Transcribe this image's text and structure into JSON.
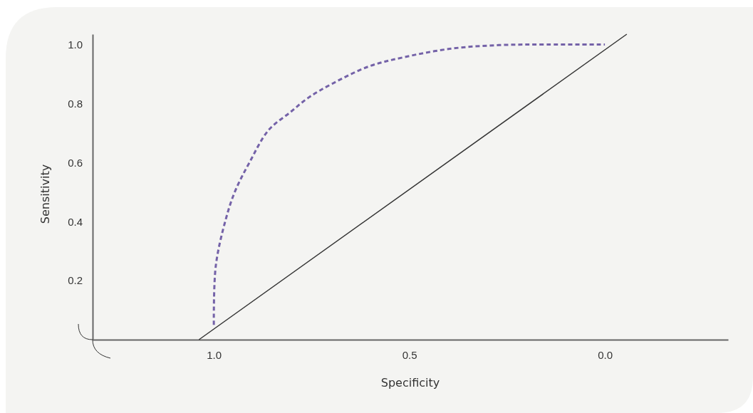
{
  "chart_data": {
    "type": "line",
    "xlabel": "Specificity",
    "ylabel": "Sensitivity",
    "xlim": [
      1.31,
      -0.315
    ],
    "ylim": [
      0,
      1.035
    ],
    "xticks": [
      {
        "value": 1,
        "label": "1.0"
      },
      {
        "value": 0.5,
        "label": "0.5"
      },
      {
        "value": 0,
        "label": "0.0"
      }
    ],
    "yticks": [
      {
        "value": 0.2,
        "label": "0.2"
      },
      {
        "value": 0.4,
        "label": "0.4"
      },
      {
        "value": 0.6,
        "label": "0.6"
      },
      {
        "value": 0.8,
        "label": "0.8"
      },
      {
        "value": 1,
        "label": "1.0"
      }
    ],
    "grid": false,
    "marker": "none",
    "series": [
      {
        "color": "#7462a8",
        "line_style": "dashed",
        "x": [
          1.0,
          0.995,
          0.969,
          0.945,
          0.909,
          0.86,
          0.805,
          0.758,
          0.696,
          0.605,
          0.514,
          0.393,
          0.271,
          0.149,
          0.0
        ],
        "values": [
          0.05,
          0.25,
          0.41,
          0.505,
          0.6,
          0.71,
          0.77,
          0.82,
          0.868,
          0.925,
          0.957,
          0.986,
          0.998,
          1.0,
          1.0
        ]
      },
      {
        "color": "#333333",
        "line_style": "solid",
        "x": [
          1.038,
          -0.056
        ],
        "values": [
          0,
          1.035
        ]
      }
    ]
  }
}
